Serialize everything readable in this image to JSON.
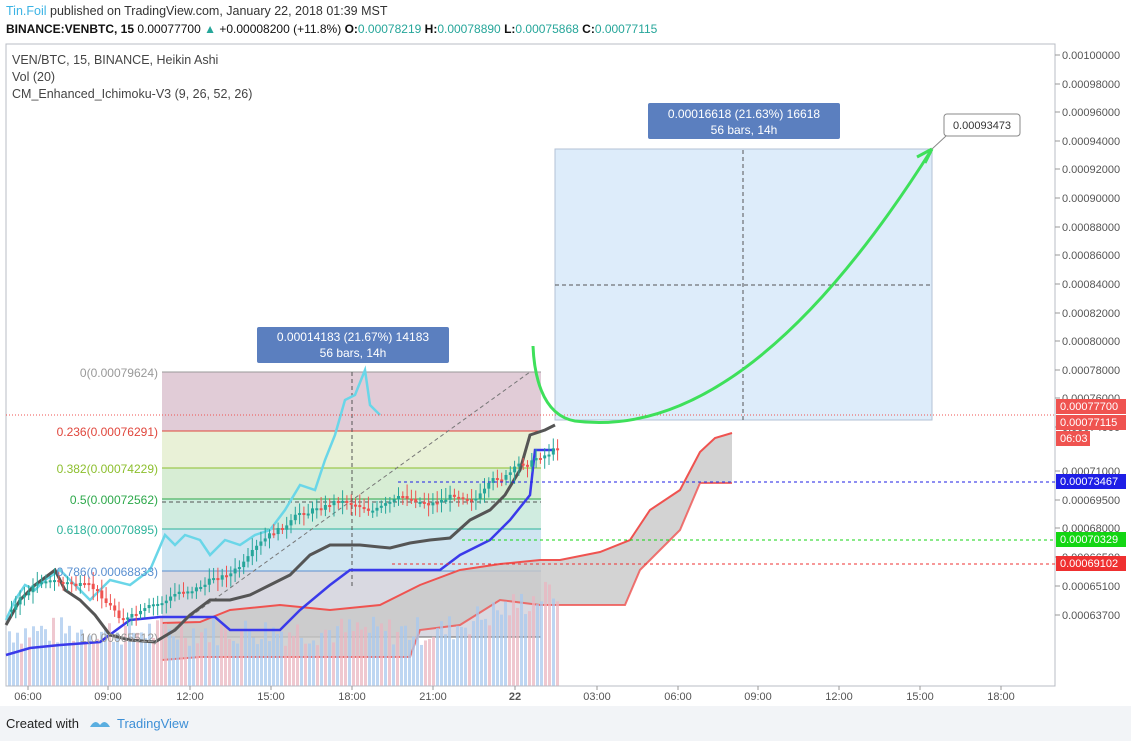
{
  "header": {
    "author": "Tin.Foil",
    "published": "published on TradingView.com, January 22, 2018 01:39 MST",
    "symbol_line": "BINANCE:VENBTC, 15",
    "last": "0.00077700",
    "change_arrow": "▲",
    "change": "+0.00008200 (+11.8%)",
    "o_label": "O:",
    "o_val": "0.00078219",
    "h_label": "H:",
    "h_val": "0.00078890",
    "l_label": "L:",
    "l_val": "0.00075868",
    "c_label": "C:",
    "c_val": "0.00077115"
  },
  "legend": {
    "series": "VEN/BTC, 15, BINANCE, Heikin Ashi",
    "vol": "Vol (20)",
    "indicator": "CM_Enhanced_Ichimoku-V3 (9, 26, 52, 26)"
  },
  "price_axis": {
    "ticks": [
      "0.00100000",
      "0.00098000",
      "0.00096000",
      "0.00094000",
      "0.00092000",
      "0.00090000",
      "0.00088000",
      "0.00086000",
      "0.00084000",
      "0.00082000",
      "0.00080000",
      "0.00078000",
      "0.00076000",
      "0.00074000",
      "0.00071000",
      "0.00069500",
      "0.00068000",
      "0.00066500",
      "0.00065100",
      "0.00063700"
    ],
    "badges": [
      {
        "text": "0.00077700",
        "color": "#ef5350"
      },
      {
        "text": "0.00077115",
        "color": "#ef5350"
      },
      {
        "text": "06:03",
        "color": "#ef5350"
      },
      {
        "text": "0.00073467",
        "color": "#1e1ee6"
      },
      {
        "text": "0.00070329",
        "color": "#13d613"
      },
      {
        "text": "0.00069102",
        "color": "#ef3030"
      }
    ]
  },
  "time_axis": [
    "06:00",
    "09:00",
    "12:00",
    "15:00",
    "18:00",
    "21:00",
    "22",
    "03:00",
    "06:00",
    "09:00",
    "12:00",
    "15:00",
    "18:00"
  ],
  "fib_levels": [
    {
      "text": "0(0.00079624)",
      "color": "#999999"
    },
    {
      "text": "0.236(0.00076291)",
      "color": "#e0463c"
    },
    {
      "text": "0.382(0.00074229)",
      "color": "#8dbf2e"
    },
    {
      "text": "0.5(0.00072562)",
      "color": "#2ca84a"
    },
    {
      "text": "0.618(0.00070895)",
      "color": "#2cb39a"
    },
    {
      "text": "0.786(0.00068833)",
      "color": "#5a8fd0"
    },
    {
      "text": "1(0.00065512)",
      "color": "#999999"
    }
  ],
  "measure_left": {
    "line1": "0.00014183 (21.67%) 14183",
    "line2": "56 bars, 14h"
  },
  "measure_right": {
    "line1": "0.00016618 (21.63%) 16618",
    "line2": "56 bars, 14h"
  },
  "target_label": "0.00093473",
  "footer": {
    "created": "Created with",
    "brand": "TradingView"
  },
  "colors": {
    "up": "#26a69a",
    "down": "#ef5350",
    "cloud": "#d4d4d4",
    "cloud_edge": "#ef5350",
    "kijun": "#3a3aea",
    "tenkan": "#555555",
    "chikou": "#6ad6e8",
    "projection": "#3ee05a"
  }
}
